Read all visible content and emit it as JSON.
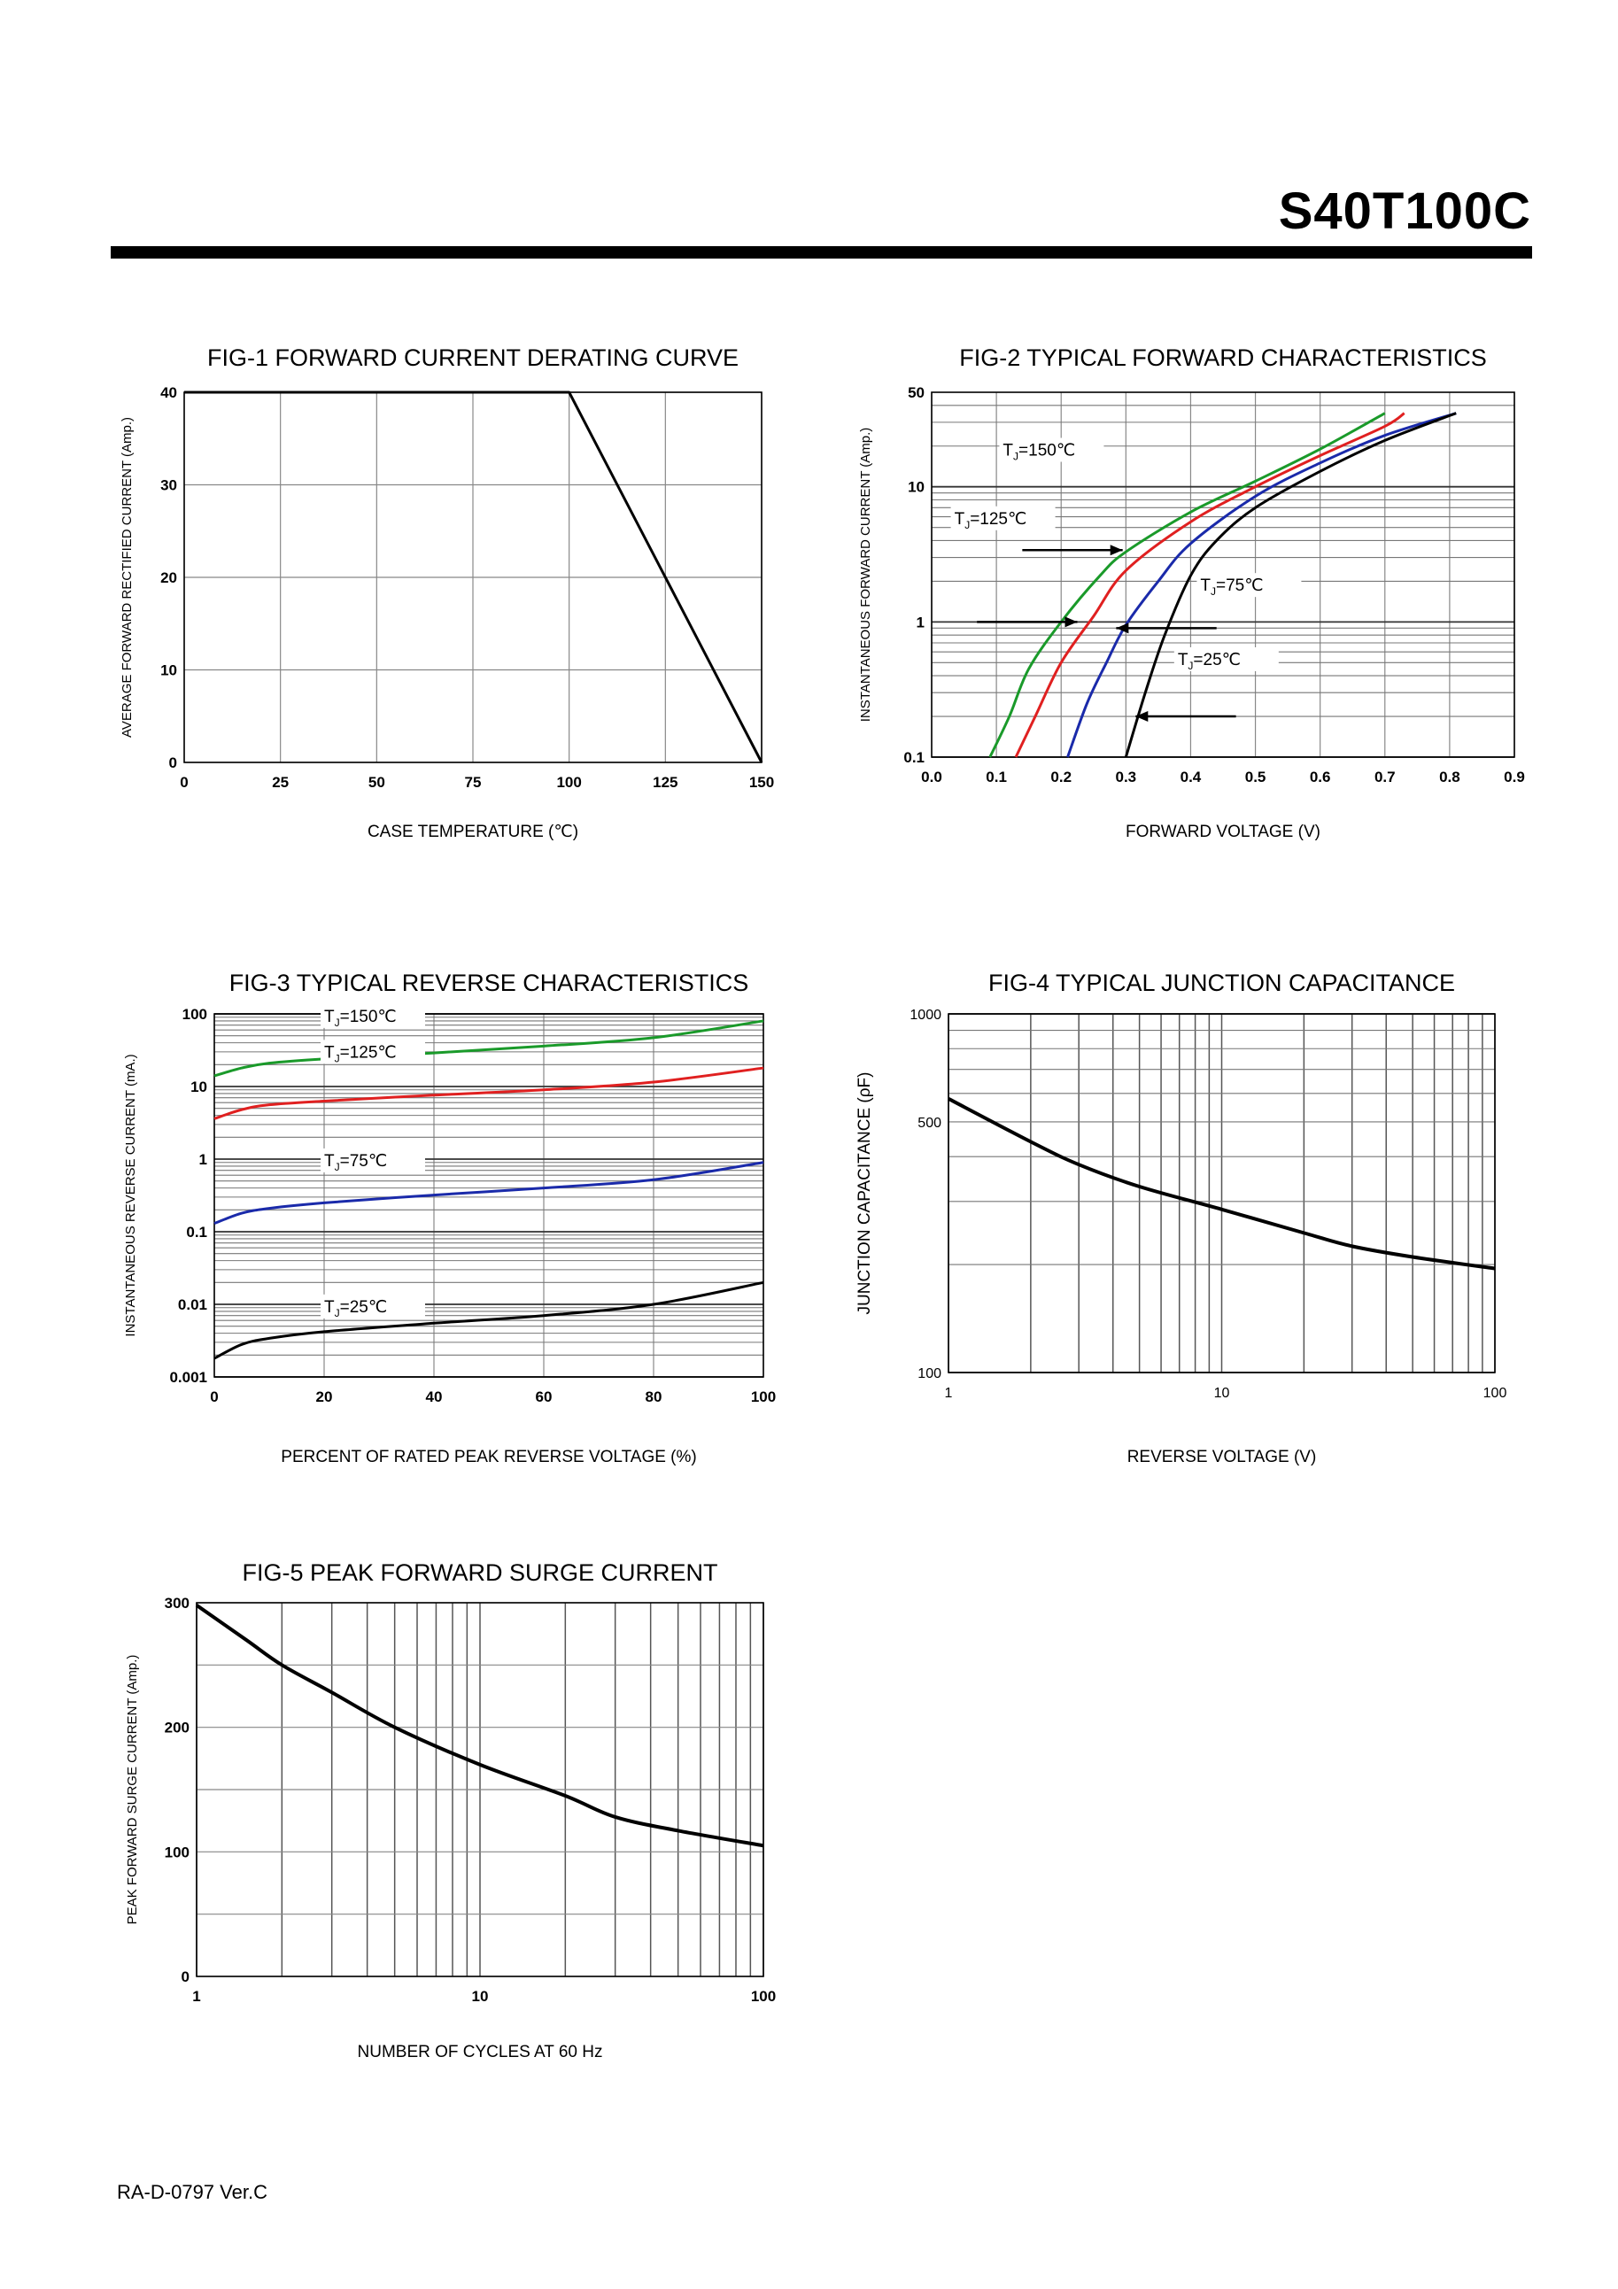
{
  "header": {
    "part_number": "S40T100C"
  },
  "footer": {
    "revision": "RA-D-0797 Ver.C"
  },
  "chart_data": [
    {
      "id": "fig1",
      "type": "line",
      "title": "FIG-1 FORWARD CURRENT DERATING CURVE",
      "xlabel": "CASE TEMPERATURE (℃)",
      "ylabel": "AVERAGE FORWARD RECTIFIED CURRENT (Amp.)",
      "xlim": [
        0,
        150
      ],
      "ylim": [
        0,
        40
      ],
      "x_scale": "linear",
      "y_scale": "linear",
      "xticks": [
        0,
        25,
        50,
        75,
        100,
        125,
        150
      ],
      "yticks": [
        0,
        10,
        20,
        30,
        40
      ],
      "grid": true,
      "series": [
        {
          "name": "",
          "color": "#000000",
          "points": [
            [
              0,
              40
            ],
            [
              100,
              40
            ],
            [
              150,
              0
            ]
          ]
        }
      ]
    },
    {
      "id": "fig2",
      "type": "line",
      "title": "FIG-2 TYPICAL FORWARD CHARACTERISTICS",
      "xlabel": "FORWARD VOLTAGE (V)",
      "ylabel": "INSTANTANEOUS FORWARD CURRENT (Amp.)",
      "xlim": [
        0,
        0.9
      ],
      "ylim": [
        0.1,
        50
      ],
      "x_scale": "linear",
      "y_scale": "log",
      "xticks": [
        0.0,
        0.1,
        0.2,
        0.3,
        0.4,
        0.5,
        0.6,
        0.7,
        0.8,
        0.9
      ],
      "xtick_labels": [
        "0.0",
        "0.1",
        "0.2",
        "0.3",
        "0.4",
        "0.5",
        "0.6",
        "0.7",
        "0.8",
        "0.9"
      ],
      "yticks": [
        0.1,
        1,
        10,
        50
      ],
      "ytick_labels": [
        "0.1",
        "1",
        "10",
        "50"
      ],
      "grid": true,
      "series": [
        {
          "name": "TJ=150℃",
          "label_main": "T",
          "label_sub": "J",
          "label_rest": "=150℃",
          "color": "#1a9a2a",
          "points": [
            [
              0.09,
              0.1
            ],
            [
              0.12,
              0.2
            ],
            [
              0.15,
              0.45
            ],
            [
              0.2,
              1.0
            ],
            [
              0.26,
              2.2
            ],
            [
              0.3,
              3.3
            ],
            [
              0.4,
              6.5
            ],
            [
              0.5,
              11
            ],
            [
              0.6,
              19
            ],
            [
              0.7,
              35
            ]
          ]
        },
        {
          "name": "TJ=125℃",
          "label_main": "T",
          "label_sub": "J",
          "label_rest": "=125℃",
          "color": "#e02020",
          "points": [
            [
              0.13,
              0.1
            ],
            [
              0.16,
              0.2
            ],
            [
              0.2,
              0.5
            ],
            [
              0.25,
              1.1
            ],
            [
              0.3,
              2.4
            ],
            [
              0.4,
              5.5
            ],
            [
              0.5,
              10
            ],
            [
              0.6,
              17
            ],
            [
              0.7,
              28
            ],
            [
              0.73,
              35
            ]
          ]
        },
        {
          "name": "TJ=75℃",
          "label_main": "T",
          "label_sub": "J",
          "label_rest": "=75℃",
          "color": "#1a2aaa",
          "points": [
            [
              0.21,
              0.1
            ],
            [
              0.24,
              0.25
            ],
            [
              0.27,
              0.5
            ],
            [
              0.3,
              0.95
            ],
            [
              0.35,
              2.0
            ],
            [
              0.4,
              3.8
            ],
            [
              0.5,
              8.5
            ],
            [
              0.6,
              15
            ],
            [
              0.7,
              24
            ],
            [
              0.81,
              35
            ]
          ]
        },
        {
          "name": "TJ=25℃",
          "label_main": "T",
          "label_sub": "J",
          "label_rest": "=25℃",
          "color": "#000000",
          "points": [
            [
              0.3,
              0.1
            ],
            [
              0.33,
              0.3
            ],
            [
              0.36,
              0.8
            ],
            [
              0.4,
              2.2
            ],
            [
              0.44,
              4.0
            ],
            [
              0.5,
              7.0
            ],
            [
              0.6,
              13
            ],
            [
              0.7,
              22
            ],
            [
              0.81,
              35
            ]
          ]
        }
      ]
    },
    {
      "id": "fig3",
      "type": "line",
      "title": "FIG-3 TYPICAL REVERSE CHARACTERISTICS",
      "xlabel": "PERCENT OF RATED PEAK REVERSE VOLTAGE (%)",
      "ylabel": "INSTANTANEOUS REVERSE CURRENT (mA.)",
      "xlim": [
        0,
        100
      ],
      "ylim": [
        0.001,
        100
      ],
      "x_scale": "linear",
      "y_scale": "log",
      "xticks": [
        0,
        20,
        40,
        60,
        80,
        100
      ],
      "yticks": [
        0.001,
        0.01,
        0.1,
        1,
        10,
        100
      ],
      "ytick_labels": [
        "0.001",
        "0.01",
        "0.1",
        "1",
        "10",
        "100"
      ],
      "grid": true,
      "series": [
        {
          "name": "TJ=150℃",
          "label_main": "T",
          "label_sub": "J",
          "label_rest": "=150℃",
          "color": "#1a9a2a",
          "points": [
            [
              0,
              14
            ],
            [
              5,
              18
            ],
            [
              10,
              21
            ],
            [
              20,
              24
            ],
            [
              40,
              29
            ],
            [
              60,
              36
            ],
            [
              80,
              47
            ],
            [
              100,
              80
            ]
          ]
        },
        {
          "name": "TJ=125℃",
          "label_main": "T",
          "label_sub": "J",
          "label_rest": "=125℃",
          "color": "#e02020",
          "points": [
            [
              0,
              3.6
            ],
            [
              5,
              4.8
            ],
            [
              10,
              5.6
            ],
            [
              20,
              6.3
            ],
            [
              40,
              7.6
            ],
            [
              60,
              9.0
            ],
            [
              80,
              11.5
            ],
            [
              100,
              18
            ]
          ]
        },
        {
          "name": "TJ=75℃",
          "label_main": "T",
          "label_sub": "J",
          "label_rest": "=75℃",
          "color": "#1a2aaa",
          "points": [
            [
              0,
              0.13
            ],
            [
              5,
              0.18
            ],
            [
              10,
              0.21
            ],
            [
              20,
              0.25
            ],
            [
              40,
              0.32
            ],
            [
              60,
              0.4
            ],
            [
              80,
              0.52
            ],
            [
              100,
              0.9
            ]
          ]
        },
        {
          "name": "TJ=25℃",
          "label_main": "T",
          "label_sub": "J",
          "label_rest": "=25℃",
          "color": "#000000",
          "points": [
            [
              0,
              0.0018
            ],
            [
              5,
              0.0028
            ],
            [
              10,
              0.0034
            ],
            [
              20,
              0.0042
            ],
            [
              40,
              0.0055
            ],
            [
              60,
              0.007
            ],
            [
              80,
              0.01
            ],
            [
              100,
              0.02
            ]
          ]
        }
      ]
    },
    {
      "id": "fig4",
      "type": "line",
      "title": "FIG-4 TYPICAL JUNCTION CAPACITANCE",
      "xlabel": "REVERSE VOLTAGE (V)",
      "ylabel": "JUNCTION CAPACITANCE (ρF)",
      "xlim": [
        1,
        100
      ],
      "ylim": [
        100,
        1000
      ],
      "x_scale": "log",
      "y_scale": "log",
      "xticks": [
        1,
        10,
        100
      ],
      "xtick_labels": [
        "1",
        "10",
        "100"
      ],
      "yticks": [
        100,
        500,
        1000
      ],
      "ytick_labels": [
        "100",
        "500",
        "1000"
      ],
      "grid": true,
      "series": [
        {
          "name": "",
          "color": "#000000",
          "points": [
            [
              1,
              580
            ],
            [
              2,
              440
            ],
            [
              3,
              380
            ],
            [
              5,
              330
            ],
            [
              10,
              285
            ],
            [
              20,
              245
            ],
            [
              30,
              225
            ],
            [
              50,
              210
            ],
            [
              100,
              195
            ]
          ]
        }
      ]
    },
    {
      "id": "fig5",
      "type": "line",
      "title": "FIG-5 PEAK FORWARD SURGE CURRENT",
      "xlabel": "NUMBER OF CYCLES AT 60 Hz",
      "ylabel": "PEAK FORWARD SURGE   CURRENT (Amp.)",
      "xlim": [
        1,
        100
      ],
      "ylim": [
        0,
        300
      ],
      "x_scale": "log",
      "y_scale": "linear",
      "xticks": [
        1,
        10,
        100
      ],
      "xtick_labels": [
        "1",
        "10",
        "100"
      ],
      "yticks": [
        0,
        100,
        200,
        300
      ],
      "grid": true,
      "series": [
        {
          "name": "",
          "color": "#000000",
          "points": [
            [
              1,
              298
            ],
            [
              1.5,
              270
            ],
            [
              2,
              250
            ],
            [
              3,
              228
            ],
            [
              5,
              200
            ],
            [
              10,
              170
            ],
            [
              20,
              145
            ],
            [
              30,
              128
            ],
            [
              50,
              117
            ],
            [
              100,
              105
            ]
          ]
        }
      ]
    }
  ]
}
